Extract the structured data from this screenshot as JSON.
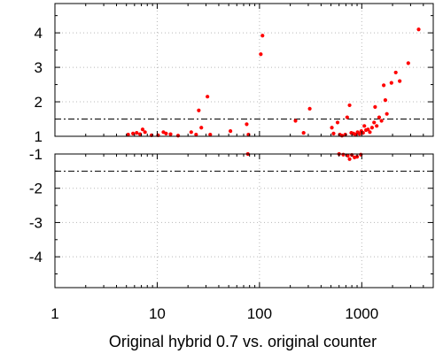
{
  "chart_data": {
    "type": "scatter",
    "xlabel": "Original hybrid 0.7 vs. original counter",
    "xscale": "log",
    "xlim": [
      1,
      5000
    ],
    "x_ticks": [
      {
        "value": 1,
        "label": "1"
      },
      {
        "value": 10,
        "label": "10"
      },
      {
        "value": 100,
        "label": "100"
      },
      {
        "value": 1000,
        "label": "1000"
      }
    ],
    "panels": [
      {
        "name": "upper",
        "ylim": [
          1,
          4.85
        ],
        "y_ticks": [
          {
            "value": 1,
            "label": "1"
          },
          {
            "value": 2,
            "label": "2"
          },
          {
            "value": 3,
            "label": "3"
          },
          {
            "value": 4,
            "label": "4"
          }
        ],
        "reference_lines": [
          {
            "y": 1.0,
            "style": "dashed",
            "color": "#0000ff"
          },
          {
            "y": 1.5,
            "style": "dash-dot",
            "color": "#000000"
          }
        ]
      },
      {
        "name": "lower",
        "ylim": [
          -4.9,
          -1
        ],
        "y_ticks": [
          {
            "value": -1,
            "label": "-1"
          },
          {
            "value": -2,
            "label": "-2"
          },
          {
            "value": -3,
            "label": "-3"
          },
          {
            "value": -4,
            "label": "-4"
          }
        ],
        "reference_lines": [
          {
            "y": -1.0,
            "style": "dashed",
            "color": "#0000ff"
          },
          {
            "y": -1.5,
            "style": "dash-dot",
            "color": "#000000"
          }
        ]
      }
    ],
    "grid": true,
    "marker_color": "#ff0000",
    "series": [
      {
        "points": [
          {
            "x": 5.2,
            "y": 1.05
          },
          {
            "x": 5.8,
            "y": 1.08
          },
          {
            "x": 6.3,
            "y": 1.1
          },
          {
            "x": 6.8,
            "y": 1.06
          },
          {
            "x": 7.2,
            "y": 1.2
          },
          {
            "x": 7.6,
            "y": 1.12
          },
          {
            "x": 8.8,
            "y": 1.03
          },
          {
            "x": 10.2,
            "y": 1.03
          },
          {
            "x": 11.5,
            "y": 1.12
          },
          {
            "x": 12.2,
            "y": 1.08
          },
          {
            "x": 13.5,
            "y": 1.06
          },
          {
            "x": 16.0,
            "y": 1.02
          },
          {
            "x": 21.5,
            "y": 1.12
          },
          {
            "x": 24.0,
            "y": 1.05
          },
          {
            "x": 25.5,
            "y": 1.75
          },
          {
            "x": 27.0,
            "y": 1.25
          },
          {
            "x": 31.0,
            "y": 2.15
          },
          {
            "x": 33.0,
            "y": 1.05
          },
          {
            "x": 52.0,
            "y": 1.15
          },
          {
            "x": 75.0,
            "y": 1.35
          },
          {
            "x": 78.0,
            "y": 1.05
          },
          {
            "x": 103.0,
            "y": 3.38
          },
          {
            "x": 107.0,
            "y": 3.92
          },
          {
            "x": 225.0,
            "y": 1.45
          },
          {
            "x": 270.0,
            "y": 1.1
          },
          {
            "x": 310.0,
            "y": 1.8
          },
          {
            "x": 510.0,
            "y": 1.25
          },
          {
            "x": 530.0,
            "y": 1.08
          },
          {
            "x": 580.0,
            "y": 1.4
          },
          {
            "x": 610.0,
            "y": 1.05
          },
          {
            "x": 640.0,
            "y": 1.02
          },
          {
            "x": 690.0,
            "y": 1.05
          },
          {
            "x": 720.0,
            "y": 1.55
          },
          {
            "x": 760.0,
            "y": 1.9
          },
          {
            "x": 790.0,
            "y": 1.1
          },
          {
            "x": 830.0,
            "y": 1.08
          },
          {
            "x": 870.0,
            "y": 1.05
          },
          {
            "x": 910.0,
            "y": 1.12
          },
          {
            "x": 950.0,
            "y": 1.07
          },
          {
            "x": 990.0,
            "y": 1.15
          },
          {
            "x": 1030.0,
            "y": 1.1
          },
          {
            "x": 1060.0,
            "y": 1.3
          },
          {
            "x": 1100.0,
            "y": 1.18
          },
          {
            "x": 1150.0,
            "y": 1.2
          },
          {
            "x": 1200.0,
            "y": 1.12
          },
          {
            "x": 1260.0,
            "y": 1.25
          },
          {
            "x": 1320.0,
            "y": 1.4
          },
          {
            "x": 1350.0,
            "y": 1.85
          },
          {
            "x": 1400.0,
            "y": 1.3
          },
          {
            "x": 1480.0,
            "y": 1.55
          },
          {
            "x": 1560.0,
            "y": 1.45
          },
          {
            "x": 1640.0,
            "y": 2.48
          },
          {
            "x": 1700.0,
            "y": 2.05
          },
          {
            "x": 1760.0,
            "y": 1.65
          },
          {
            "x": 1950.0,
            "y": 2.55
          },
          {
            "x": 2150.0,
            "y": 2.85
          },
          {
            "x": 2350.0,
            "y": 2.6
          },
          {
            "x": 2850.0,
            "y": 3.12
          },
          {
            "x": 3600.0,
            "y": 4.1
          },
          {
            "x": 77.0,
            "y": -1.0
          },
          {
            "x": 600.0,
            "y": -1.0
          },
          {
            "x": 660.0,
            "y": -1.02
          },
          {
            "x": 730.0,
            "y": -1.05
          },
          {
            "x": 760.0,
            "y": -1.15
          },
          {
            "x": 800.0,
            "y": -1.03
          },
          {
            "x": 850.0,
            "y": -1.1
          },
          {
            "x": 900.0,
            "y": -1.08
          },
          {
            "x": 980.0,
            "y": -1.02
          }
        ]
      }
    ]
  }
}
